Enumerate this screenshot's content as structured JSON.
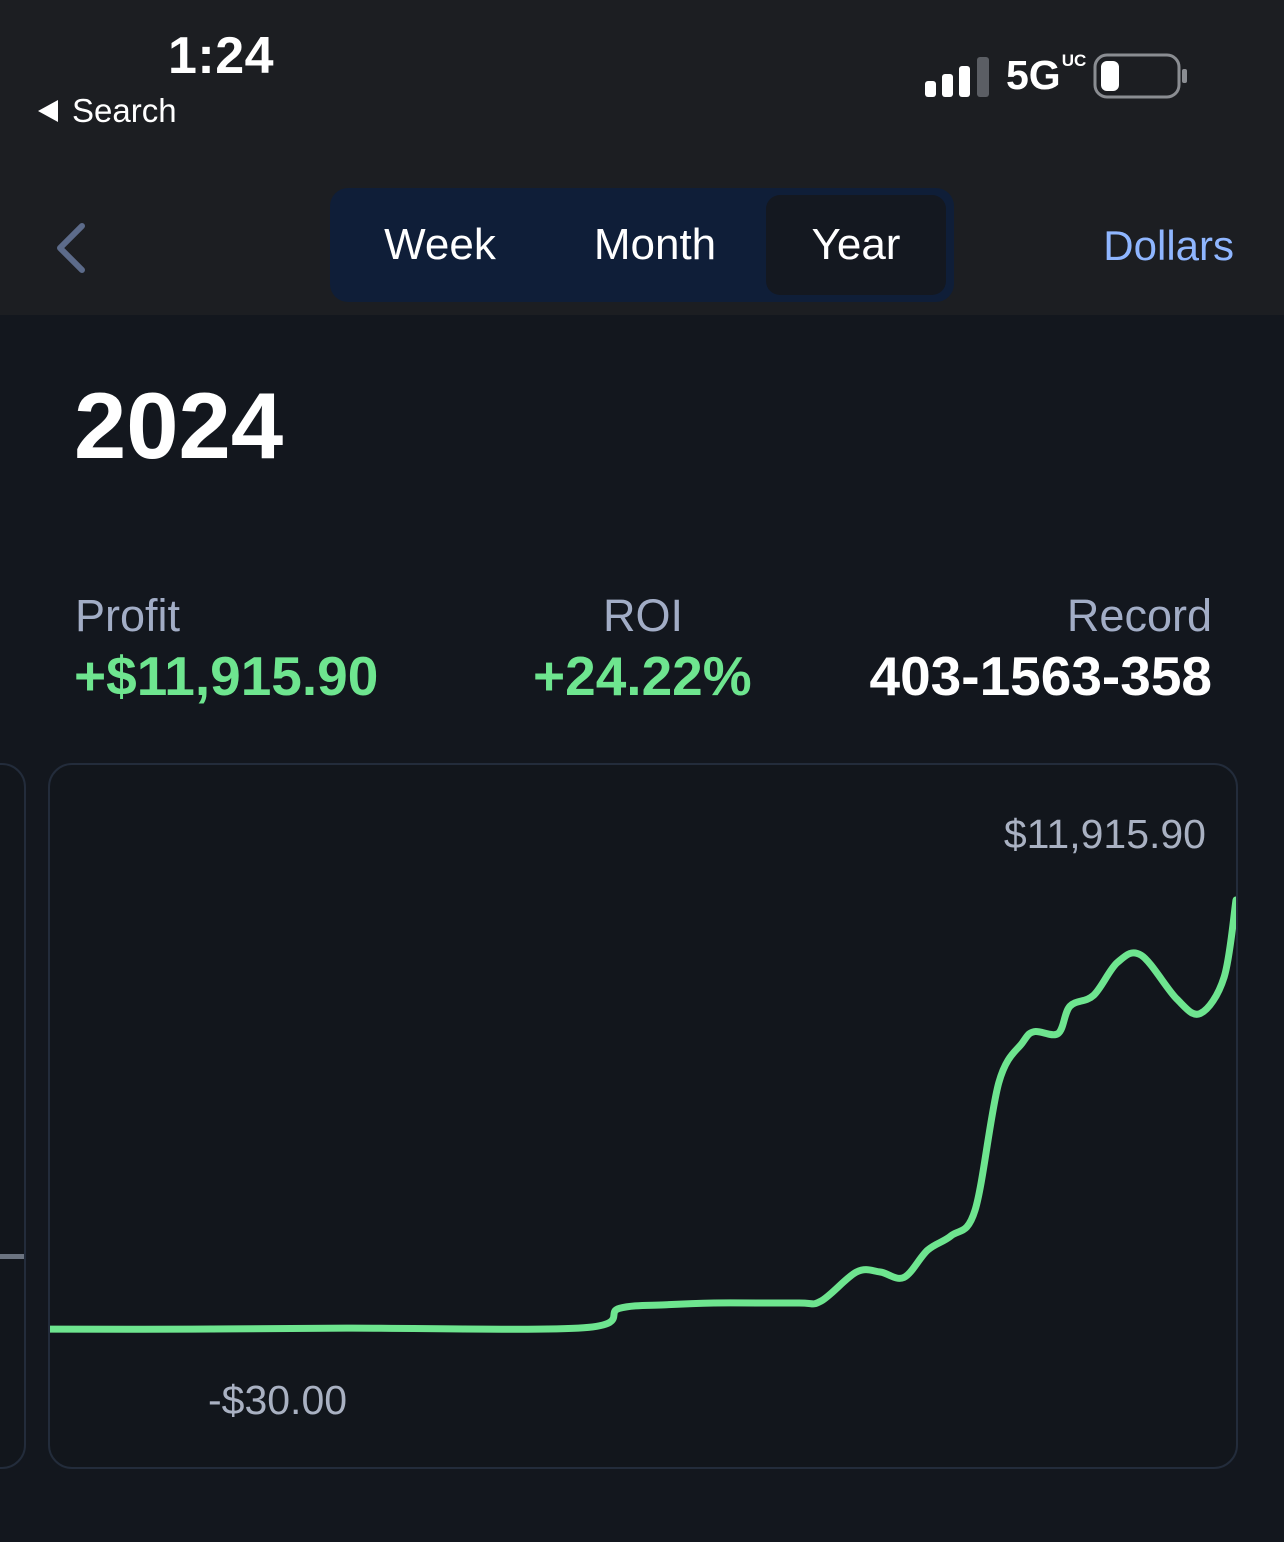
{
  "status_bar": {
    "time": "1:24",
    "back_app": "Search",
    "network": "5G",
    "network_badge": "UC",
    "battery_fraction": 0.25
  },
  "header": {
    "back_icon": "chevron-left-icon",
    "tabs": [
      {
        "label": "Week",
        "selected": false
      },
      {
        "label": "Month",
        "selected": false
      },
      {
        "label": "Year",
        "selected": true
      }
    ],
    "units_button": "Dollars"
  },
  "period_title": "2024",
  "stats": {
    "profit": {
      "label": "Profit",
      "value": "+$11,915.90"
    },
    "roi": {
      "label": "ROI",
      "value": "+24.22%"
    },
    "record": {
      "label": "Record",
      "value": "403-1563-358"
    }
  },
  "colors": {
    "accent_green": "#6ee58f",
    "link_blue": "#8fb6ff",
    "background": "#13171e",
    "segment_bg": "#0f1e38"
  },
  "chart_data": {
    "type": "line",
    "max_label": "$11,915.90",
    "min_label": "-$30.00",
    "ylim": [
      -30,
      11915.9
    ],
    "series": [
      {
        "points": [
          [
            0.0,
            130
          ],
          [
            0.12,
            130
          ],
          [
            0.25,
            160
          ],
          [
            0.45,
            170
          ],
          [
            0.48,
            700
          ],
          [
            0.52,
            800
          ],
          [
            0.56,
            850
          ],
          [
            0.63,
            850
          ],
          [
            0.65,
            900
          ],
          [
            0.68,
            1700
          ],
          [
            0.7,
            1700
          ],
          [
            0.72,
            1550
          ],
          [
            0.74,
            2300
          ],
          [
            0.76,
            2700
          ],
          [
            0.78,
            3400
          ],
          [
            0.8,
            6900
          ],
          [
            0.82,
            8000
          ],
          [
            0.83,
            8300
          ],
          [
            0.85,
            8250
          ],
          [
            0.86,
            9000
          ],
          [
            0.88,
            9300
          ],
          [
            0.9,
            10200
          ],
          [
            0.92,
            10400
          ],
          [
            0.95,
            9200
          ],
          [
            0.97,
            8800
          ],
          [
            0.99,
            9800
          ],
          [
            1.0,
            11915.9
          ]
        ]
      }
    ]
  }
}
